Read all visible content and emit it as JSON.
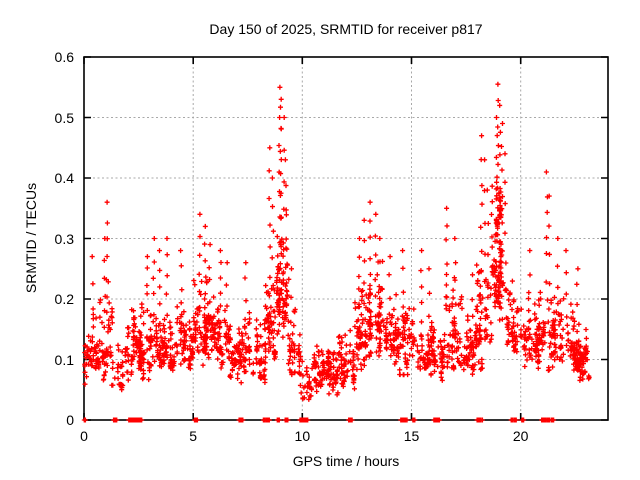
{
  "figure": {
    "background": "#ffffff",
    "border_color": "#000000",
    "text_color": "#000000"
  },
  "chart_data": {
    "type": "scatter",
    "title": "Day 150 of 2025, SRMTID for receiver p817",
    "xlabel": "GPS time / hours",
    "ylabel": "SRMTID / TECUs",
    "xlim": [
      0,
      24
    ],
    "ylim": [
      0,
      0.6
    ],
    "xticks": [
      0,
      5,
      10,
      15,
      20
    ],
    "xtick_labels": [
      "0",
      "5",
      "10",
      "15",
      "20"
    ],
    "yticks": [
      0,
      0.1,
      0.2,
      0.3,
      0.4,
      0.5,
      0.6
    ],
    "ytick_labels": [
      "0",
      "0.1",
      "0.2",
      "0.3",
      "0.4",
      "0.5",
      "0.6"
    ],
    "grid": true,
    "grid_color": "#a8a8a8",
    "legend": "none",
    "marker": "plus",
    "marker_color": "#ff0000",
    "marker_size": 5,
    "seed": 20251507,
    "bands": [
      [
        0.0,
        0.5,
        35,
        0.05,
        0.2
      ],
      [
        0.5,
        1.0,
        45,
        0.06,
        0.22
      ],
      [
        1.0,
        1.3,
        25,
        0.08,
        0.25
      ],
      [
        1.3,
        1.9,
        28,
        0.04,
        0.16
      ],
      [
        1.9,
        3.1,
        130,
        0.06,
        0.21
      ],
      [
        3.1,
        3.9,
        70,
        0.08,
        0.2
      ],
      [
        3.9,
        4.7,
        70,
        0.08,
        0.22
      ],
      [
        4.7,
        5.0,
        30,
        0.07,
        0.18
      ],
      [
        5.0,
        6.0,
        110,
        0.09,
        0.25
      ],
      [
        6.0,
        6.7,
        60,
        0.08,
        0.22
      ],
      [
        6.7,
        7.1,
        35,
        0.06,
        0.16
      ],
      [
        7.1,
        7.8,
        55,
        0.05,
        0.2
      ],
      [
        7.8,
        8.3,
        45,
        0.05,
        0.18
      ],
      [
        8.3,
        8.8,
        55,
        0.08,
        0.3
      ],
      [
        8.8,
        9.35,
        80,
        0.12,
        0.38
      ],
      [
        9.35,
        9.9,
        45,
        0.06,
        0.22
      ],
      [
        9.9,
        10.5,
        30,
        0.02,
        0.12
      ],
      [
        10.5,
        11.6,
        110,
        0.04,
        0.14
      ],
      [
        11.6,
        12.4,
        65,
        0.05,
        0.16
      ],
      [
        12.4,
        13.0,
        60,
        0.08,
        0.26
      ],
      [
        13.0,
        13.7,
        75,
        0.1,
        0.28
      ],
      [
        13.7,
        14.4,
        60,
        0.08,
        0.22
      ],
      [
        14.4,
        15.1,
        55,
        0.07,
        0.22
      ],
      [
        15.1,
        16.0,
        70,
        0.07,
        0.2
      ],
      [
        16.0,
        16.5,
        40,
        0.06,
        0.18
      ],
      [
        16.5,
        17.3,
        65,
        0.08,
        0.24
      ],
      [
        17.3,
        18.0,
        55,
        0.07,
        0.2
      ],
      [
        18.0,
        18.65,
        60,
        0.08,
        0.3
      ],
      [
        18.65,
        19.35,
        85,
        0.15,
        0.42
      ],
      [
        18.85,
        19.15,
        40,
        0.3,
        0.42
      ],
      [
        19.35,
        20.1,
        55,
        0.1,
        0.25
      ],
      [
        20.1,
        20.8,
        55,
        0.08,
        0.22
      ],
      [
        20.8,
        21.45,
        55,
        0.08,
        0.24
      ],
      [
        21.45,
        22.4,
        70,
        0.08,
        0.22
      ],
      [
        22.4,
        23.2,
        110,
        0.06,
        0.18
      ]
    ],
    "spikes": [
      [
        0.4,
        0.15,
        0.27,
        4
      ],
      [
        0.95,
        0.18,
        0.3,
        5
      ],
      [
        1.05,
        0.2,
        0.36,
        6
      ],
      [
        2.9,
        0.18,
        0.27,
        5
      ],
      [
        3.2,
        0.17,
        0.3,
        5
      ],
      [
        3.45,
        0.16,
        0.28,
        5
      ],
      [
        3.8,
        0.17,
        0.3,
        5
      ],
      [
        4.45,
        0.16,
        0.28,
        5
      ],
      [
        5.3,
        0.18,
        0.34,
        6
      ],
      [
        5.55,
        0.18,
        0.32,
        6
      ],
      [
        5.75,
        0.16,
        0.29,
        5
      ],
      [
        6.25,
        0.16,
        0.28,
        6
      ],
      [
        6.55,
        0.15,
        0.26,
        4
      ],
      [
        7.4,
        0.14,
        0.26,
        5
      ],
      [
        8.5,
        0.2,
        0.45,
        7
      ],
      [
        8.65,
        0.18,
        0.4,
        6
      ],
      [
        8.95,
        0.25,
        0.5,
        7
      ],
      [
        9.0,
        0.3,
        0.55,
        8
      ],
      [
        9.05,
        0.28,
        0.53,
        6
      ],
      [
        9.15,
        0.25,
        0.5,
        6
      ],
      [
        9.25,
        0.2,
        0.43,
        6
      ],
      [
        9.5,
        0.12,
        0.25,
        4
      ],
      [
        12.6,
        0.15,
        0.3,
        6
      ],
      [
        12.85,
        0.16,
        0.33,
        6
      ],
      [
        13.1,
        0.18,
        0.36,
        7
      ],
      [
        13.35,
        0.17,
        0.34,
        6
      ],
      [
        13.55,
        0.15,
        0.3,
        5
      ],
      [
        14.0,
        0.14,
        0.27,
        5
      ],
      [
        14.6,
        0.14,
        0.28,
        5
      ],
      [
        15.45,
        0.14,
        0.28,
        6
      ],
      [
        15.8,
        0.13,
        0.25,
        4
      ],
      [
        16.6,
        0.18,
        0.35,
        7
      ],
      [
        17.0,
        0.15,
        0.3,
        5
      ],
      [
        17.8,
        0.13,
        0.24,
        4
      ],
      [
        18.2,
        0.2,
        0.47,
        8
      ],
      [
        18.35,
        0.18,
        0.43,
        6
      ],
      [
        18.5,
        0.17,
        0.38,
        5
      ],
      [
        18.9,
        0.3,
        0.5,
        7
      ],
      [
        18.97,
        0.32,
        0.555,
        8
      ],
      [
        19.05,
        0.3,
        0.52,
        6
      ],
      [
        19.15,
        0.28,
        0.49,
        6
      ],
      [
        19.3,
        0.22,
        0.44,
        6
      ],
      [
        20.4,
        0.13,
        0.28,
        5
      ],
      [
        21.2,
        0.2,
        0.41,
        7
      ],
      [
        21.3,
        0.18,
        0.37,
        5
      ],
      [
        21.7,
        0.14,
        0.3,
        5
      ],
      [
        22.1,
        0.13,
        0.28,
        5
      ],
      [
        22.6,
        0.12,
        0.25,
        5
      ]
    ],
    "zeros": [
      [
        0.0,
        0.1,
        3
      ],
      [
        1.35,
        1.5,
        12
      ],
      [
        2.05,
        2.65,
        40
      ],
      [
        5.05,
        5.2,
        10
      ],
      [
        7.1,
        7.3,
        10
      ],
      [
        8.2,
        8.5,
        14
      ],
      [
        8.85,
        8.95,
        8
      ],
      [
        9.2,
        9.35,
        8
      ],
      [
        9.85,
        10.25,
        20
      ],
      [
        12.1,
        12.3,
        10
      ],
      [
        14.5,
        14.8,
        14
      ],
      [
        15.05,
        15.15,
        6
      ],
      [
        16.0,
        16.3,
        16
      ],
      [
        18.0,
        18.25,
        12
      ],
      [
        19.5,
        19.8,
        14
      ],
      [
        20.05,
        20.15,
        6
      ],
      [
        20.95,
        21.35,
        18
      ],
      [
        21.4,
        21.55,
        8
      ]
    ]
  }
}
